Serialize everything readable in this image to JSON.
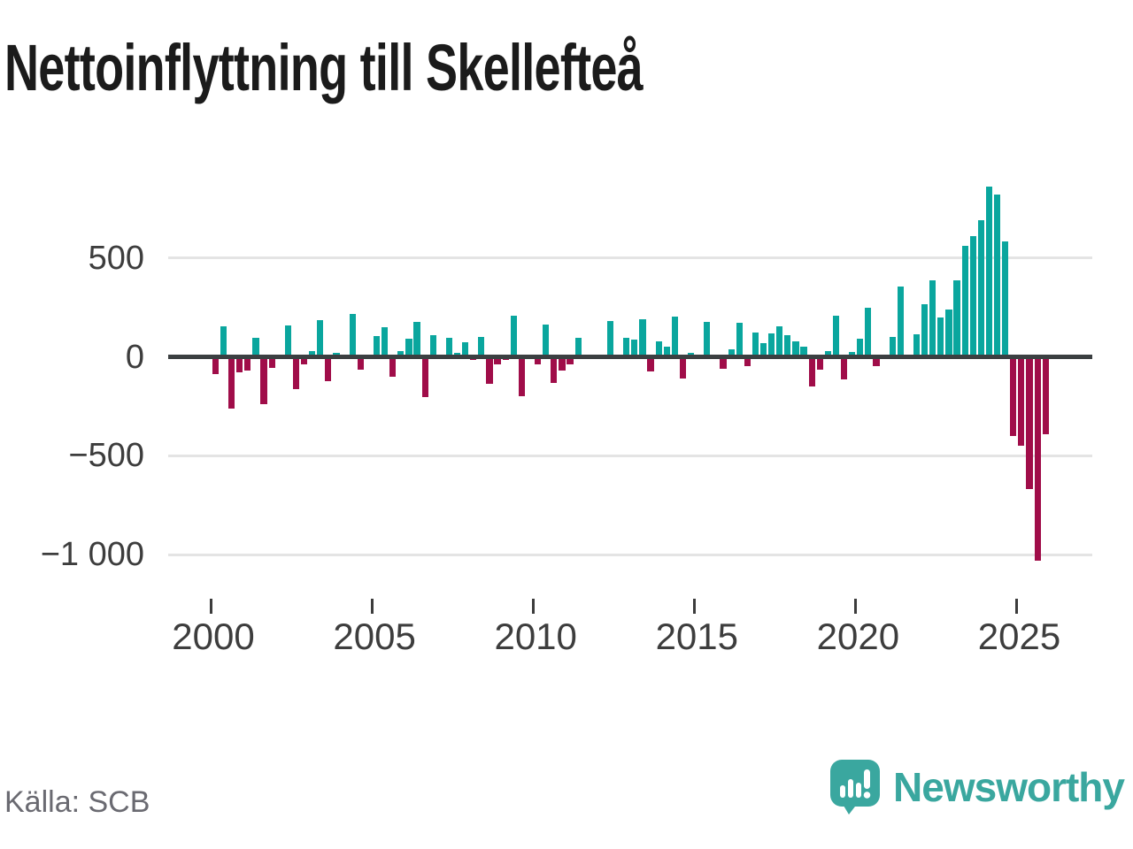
{
  "title": "Nettoinflyttning till Skellefteå",
  "source": "Källa: SCB",
  "logo": {
    "wordmark": "Newsworthy"
  },
  "colors": {
    "positive": "#0aa69e",
    "negative": "#a00d49",
    "axis": "#3b3f41",
    "gridline": "#e4e4e4",
    "tick_label": "#3d3d3d",
    "source_text": "#6a6a71",
    "logo_teal": "#3aa79f",
    "title_text": "#1b1b1b"
  },
  "chart_data": {
    "type": "bar",
    "title": "Nettoinflyttning till Skellefteå",
    "frequency": "quarterly",
    "start": "2000 Q1",
    "end": "2025 Q4",
    "ylim": [
      -1100,
      900
    ],
    "grid": "horizontal",
    "legend": "none",
    "y_ticks": [
      {
        "value": 500,
        "label": "500"
      },
      {
        "value": 0,
        "label": "0"
      },
      {
        "value": -500,
        "label": "−500"
      },
      {
        "value": -1000,
        "label": "−1 000"
      }
    ],
    "x_ticks": [
      {
        "label": "2000"
      },
      {
        "label": "2005"
      },
      {
        "label": "2010"
      },
      {
        "label": "2015"
      },
      {
        "label": "2020"
      },
      {
        "label": "2025"
      }
    ],
    "values": [
      -85,
      155,
      -260,
      -80,
      -70,
      95,
      -240,
      -55,
      0,
      160,
      -165,
      -40,
      30,
      185,
      -125,
      20,
      0,
      215,
      -65,
      0,
      105,
      150,
      -100,
      30,
      90,
      175,
      -205,
      110,
      0,
      95,
      20,
      75,
      -15,
      100,
      -135,
      -40,
      -15,
      210,
      -200,
      10,
      -40,
      165,
      -130,
      -70,
      -40,
      95,
      0,
      0,
      0,
      180,
      0,
      95,
      85,
      190,
      -75,
      80,
      50,
      205,
      -110,
      20,
      -10,
      175,
      0,
      -60,
      40,
      170,
      -45,
      125,
      70,
      120,
      155,
      110,
      80,
      50,
      -150,
      -65,
      30,
      210,
      -115,
      25,
      90,
      250,
      -45,
      0,
      100,
      355,
      10,
      115,
      265,
      385,
      200,
      240,
      385,
      560,
      610,
      690,
      860,
      820,
      585,
      -400,
      -450,
      -670,
      -1030,
      -390
    ]
  }
}
